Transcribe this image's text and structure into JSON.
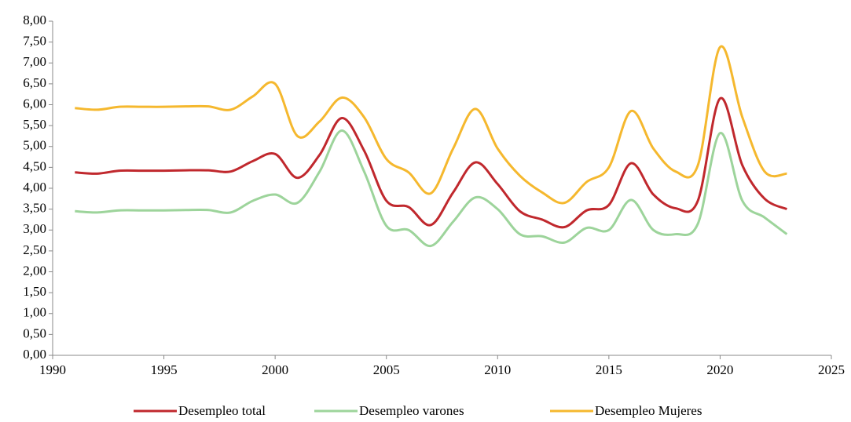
{
  "chart_data": {
    "type": "line",
    "x": [
      1991,
      1992,
      1993,
      1994,
      1995,
      1996,
      1997,
      1998,
      1999,
      2000,
      2001,
      2002,
      2003,
      2004,
      2005,
      2006,
      2007,
      2008,
      2009,
      2010,
      2011,
      2012,
      2013,
      2014,
      2015,
      2016,
      2017,
      2018,
      2019,
      2020,
      2021,
      2022,
      2023
    ],
    "series": [
      {
        "name": "Desempleo total",
        "color": "#c0282d",
        "values": [
          4.38,
          4.35,
          4.42,
          4.42,
          4.42,
          4.43,
          4.43,
          4.4,
          4.65,
          4.82,
          4.25,
          4.8,
          5.68,
          4.9,
          3.7,
          3.55,
          3.12,
          3.9,
          4.62,
          4.1,
          3.45,
          3.25,
          3.07,
          3.47,
          3.6,
          4.6,
          3.85,
          3.52,
          3.7,
          6.15,
          4.55,
          3.75,
          3.5
        ]
      },
      {
        "name": "Desempleo varones",
        "color": "#9dd49b",
        "values": [
          3.45,
          3.42,
          3.47,
          3.47,
          3.47,
          3.48,
          3.48,
          3.42,
          3.7,
          3.85,
          3.65,
          4.4,
          5.38,
          4.4,
          3.1,
          3.0,
          2.62,
          3.2,
          3.78,
          3.5,
          2.9,
          2.85,
          2.7,
          3.05,
          3.0,
          3.72,
          3.0,
          2.9,
          3.15,
          5.32,
          3.7,
          3.3,
          2.9
        ]
      },
      {
        "name": "Desempleo Mujeres",
        "color": "#f5b82e",
        "values": [
          5.92,
          5.88,
          5.95,
          5.95,
          5.95,
          5.96,
          5.96,
          5.88,
          6.2,
          6.5,
          5.25,
          5.6,
          6.17,
          5.7,
          4.7,
          4.38,
          3.88,
          4.95,
          5.9,
          4.95,
          4.3,
          3.9,
          3.65,
          4.15,
          4.5,
          5.85,
          4.95,
          4.4,
          4.55,
          7.38,
          5.7,
          4.4,
          4.35
        ]
      }
    ],
    "xlim": [
      1990,
      2025
    ],
    "xticks": [
      1990,
      1995,
      2000,
      2005,
      2010,
      2015,
      2020,
      2025
    ],
    "ylim": [
      0,
      8
    ],
    "yticks": [
      {
        "value": 0,
        "label": "0,00"
      },
      {
        "value": 0.5,
        "label": "0,50"
      },
      {
        "value": 1,
        "label": "1,00"
      },
      {
        "value": 1.5,
        "label": "1,50"
      },
      {
        "value": 2,
        "label": "2,00"
      },
      {
        "value": 2.5,
        "label": "2,50"
      },
      {
        "value": 3,
        "label": "3,00"
      },
      {
        "value": 3.5,
        "label": "3,50"
      },
      {
        "value": 4,
        "label": "4,00"
      },
      {
        "value": 4.5,
        "label": "4,50"
      },
      {
        "value": 5,
        "label": "5,00"
      },
      {
        "value": 5.5,
        "label": "5,50"
      },
      {
        "value": 6,
        "label": "6,00"
      },
      {
        "value": 6.5,
        "label": "6,50"
      },
      {
        "value": 7,
        "label": "7,00"
      },
      {
        "value": 7.5,
        "label": "7,50"
      },
      {
        "value": 8,
        "label": "8,00"
      }
    ],
    "legend": "bottom"
  }
}
